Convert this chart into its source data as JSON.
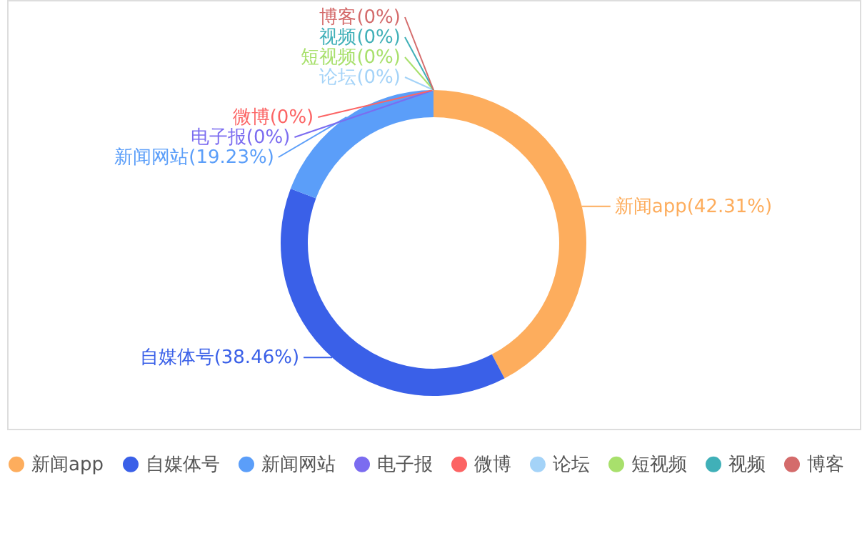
{
  "chart_data": {
    "type": "donut",
    "categories": [
      "新闻app",
      "自媒体号",
      "新闻网站",
      "电子报",
      "微博",
      null,
      "论坛",
      "短视频",
      "视频",
      "博客"
    ],
    "values": [
      42.31,
      38.46,
      19.23,
      0,
      0,
      0,
      0,
      0,
      0,
      0
    ],
    "colors": [
      "#fdad5d",
      "#3a60e8",
      "#5b9ef9",
      "#7b6cf0",
      "#fc6464",
      "#4dc86e",
      "#a4d3f8",
      "#a8e06c",
      "#40b0b8",
      "#d46b6b"
    ],
    "value_labels": [
      "(42.31%)",
      "(38.46%)",
      "(19.23%)",
      "(0%)",
      "(0%)",
      null,
      "(0%)",
      "(0%)",
      "(0%)",
      "(0%)"
    ],
    "legend": "bottom"
  }
}
